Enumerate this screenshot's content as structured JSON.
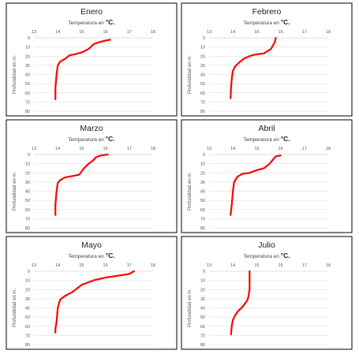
{
  "chart_data": [
    {
      "type": "line",
      "title": "Enero",
      "xlabel": "Temperatura en °C.",
      "xlabel_text": "Temperatura en ",
      "xlabel_unit": "°C.",
      "ylabel": "Profundidad en m.",
      "xlim": [
        13,
        18
      ],
      "ylim": [
        0,
        80
      ],
      "x_ticks": [
        "13",
        "14",
        "15",
        "16",
        "17",
        "18"
      ],
      "y_ticks": [
        "0",
        "10",
        "20",
        "30",
        "40",
        "50",
        "60",
        "70",
        "80"
      ],
      "line_color": "#ff0000",
      "series": [
        {
          "x": [
            16.2,
            16.0,
            15.7,
            15.5,
            15.3,
            15.0,
            14.7,
            14.5,
            14.3,
            14.1,
            14.0,
            13.95,
            13.9,
            13.9
          ],
          "y": [
            2,
            3,
            5,
            7,
            12,
            16,
            18,
            19,
            23,
            26,
            30,
            40,
            55,
            67
          ]
        }
      ]
    },
    {
      "type": "line",
      "title": "Febrero",
      "xlabel": "Temperatura en °C.",
      "xlabel_text": "Temperatura en ",
      "xlabel_unit": "°C.",
      "ylabel": "Profundidad en m.",
      "xlim": [
        13,
        18
      ],
      "ylim": [
        0,
        80
      ],
      "x_ticks": [
        "13",
        "14",
        "15",
        "16",
        "17",
        "18"
      ],
      "y_ticks": [
        "0",
        "10",
        "20",
        "30",
        "40",
        "50",
        "60",
        "70",
        "80"
      ],
      "line_color": "#ff0000",
      "series": [
        {
          "x": [
            15.8,
            15.75,
            15.6,
            15.3,
            15.0,
            14.8,
            14.5,
            14.3,
            14.1,
            14.0,
            13.95,
            13.92,
            13.9
          ],
          "y": [
            0,
            5,
            12,
            17,
            18,
            19,
            22,
            26,
            31,
            36,
            45,
            55,
            66
          ]
        }
      ]
    },
    {
      "type": "line",
      "title": "Marzo",
      "xlabel": "Temperatura en °C.",
      "xlabel_text": "Temperatura en ",
      "xlabel_unit": "°C.",
      "ylabel": "Profundidad en m.",
      "xlim": [
        13,
        18
      ],
      "ylim": [
        0,
        80
      ],
      "x_ticks": [
        "13",
        "14",
        "15",
        "16",
        "17",
        "18"
      ],
      "y_ticks": [
        "0",
        "10",
        "20",
        "30",
        "40",
        "50",
        "60",
        "70",
        "80"
      ],
      "line_color": "#ff0000",
      "series": [
        {
          "x": [
            16.1,
            15.8,
            15.6,
            15.5,
            15.3,
            15.1,
            14.9,
            14.5,
            14.3,
            14.1,
            14.0,
            13.95,
            13.9,
            13.9
          ],
          "y": [
            0,
            1,
            3,
            6,
            10,
            15,
            22,
            24,
            25,
            28,
            31,
            40,
            55,
            66
          ]
        }
      ]
    },
    {
      "type": "line",
      "title": "Abril",
      "xlabel": "Temperatura en °C.",
      "xlabel_text": "Temperatura en ",
      "xlabel_unit": "°C.",
      "ylabel": "Profundidad en m.",
      "xlim": [
        13,
        18
      ],
      "ylim": [
        0,
        80
      ],
      "x_ticks": [
        "13",
        "14",
        "15",
        "16",
        "17",
        "18"
      ],
      "y_ticks": [
        "0",
        "10",
        "20",
        "30",
        "40",
        "50",
        "60",
        "70",
        "80"
      ],
      "line_color": "#ff0000",
      "series": [
        {
          "x": [
            16.0,
            15.8,
            15.7,
            15.5,
            15.3,
            15.0,
            14.7,
            14.4,
            14.2,
            14.05,
            14.0,
            13.95,
            13.9
          ],
          "y": [
            1,
            2,
            5,
            11,
            15,
            17,
            20,
            21,
            24,
            30,
            40,
            55,
            66
          ]
        }
      ]
    },
    {
      "type": "line",
      "title": "Mayo",
      "xlabel": "Temperatura en °C.",
      "xlabel_text": "Temperatura en ",
      "xlabel_unit": "°C.",
      "ylabel": "Profundidad en m.",
      "xlim": [
        13,
        18
      ],
      "ylim": [
        0,
        80
      ],
      "x_ticks": [
        "13",
        "14",
        "15",
        "16",
        "17",
        "18"
      ],
      "y_ticks": [
        "0",
        "10",
        "20",
        "30",
        "40",
        "50",
        "60",
        "70",
        "80"
      ],
      "line_color": "#ff0000",
      "series": [
        {
          "x": [
            17.2,
            17.0,
            16.5,
            16.0,
            15.5,
            15.0,
            14.8,
            14.6,
            14.3,
            14.1,
            14.0,
            13.95,
            13.9,
            13.9
          ],
          "y": [
            0,
            3,
            5,
            7,
            10,
            15,
            19,
            23,
            27,
            31,
            40,
            55,
            63,
            67
          ]
        }
      ]
    },
    {
      "type": "line",
      "title": "Julio",
      "xlabel": "Temperatura en °C.",
      "xlabel_text": "Temperatura en ",
      "xlabel_unit": "°C.",
      "ylabel": "Profundidad en m.",
      "xlim": [
        13,
        18
      ],
      "ylim": [
        0,
        80
      ],
      "x_ticks": [
        "13",
        "14",
        "15",
        "16",
        "17",
        "18"
      ],
      "y_ticks": [
        "0",
        "10",
        "20",
        "30",
        "40",
        "50",
        "60",
        "70",
        "80"
      ],
      "line_color": "#ff0000",
      "series": [
        {
          "x": [
            14.7,
            14.7,
            14.7,
            14.65,
            14.6,
            14.4,
            14.2,
            14.1,
            14.0,
            13.95,
            13.92
          ],
          "y": [
            0,
            10,
            20,
            28,
            32,
            39,
            44,
            48,
            53,
            60,
            69
          ]
        }
      ]
    }
  ]
}
